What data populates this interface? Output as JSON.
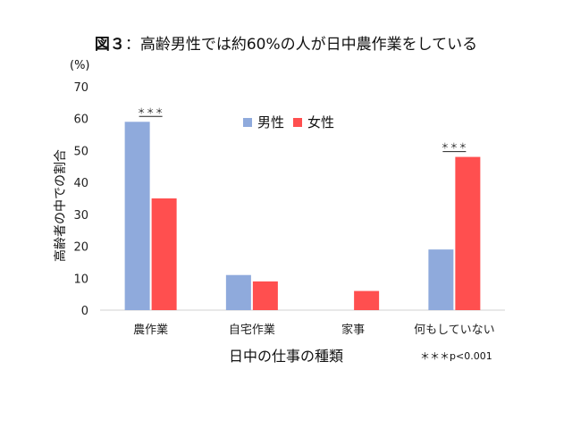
{
  "title": {
    "prefix": "図３",
    "text": "：高齢男性では約60%の人が日中農作業をしている"
  },
  "unit": "(%)",
  "note": "＊＊＊p<0.001",
  "colors": {
    "male": "#8FAADC",
    "female": "#FF4F4F"
  },
  "chart_data": {
    "type": "bar",
    "title": "図３：高齢男性では約60%の人が日中農作業をしている",
    "xlabel": "日中の仕事の種類",
    "ylabel": "高齢者の中での割合",
    "categories": [
      "農作業",
      "自宅作業",
      "家事",
      "何もしていない"
    ],
    "series": [
      {
        "name": "男性",
        "values": [
          59,
          11,
          0,
          19
        ]
      },
      {
        "name": "女性",
        "values": [
          35,
          9,
          6,
          48
        ]
      }
    ],
    "ylim": [
      0,
      70
    ],
    "yticks": [
      "0",
      "10",
      "20",
      "30",
      "40",
      "50",
      "60",
      "70"
    ],
    "legend": "top-center",
    "grid": false,
    "significance": [
      {
        "category": "農作業",
        "label": "＊＊＊"
      },
      {
        "category": "何もしていない",
        "label": "＊＊＊"
      }
    ]
  }
}
